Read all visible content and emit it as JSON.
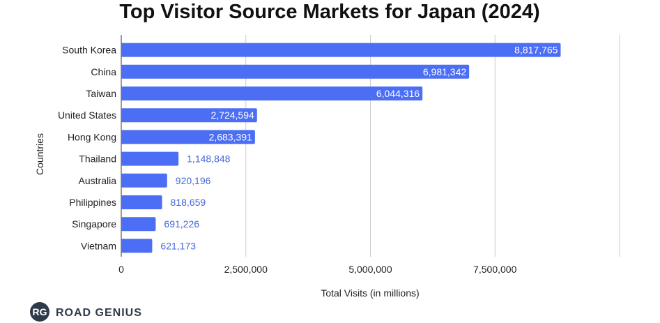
{
  "chart_data": {
    "type": "bar",
    "orientation": "horizontal",
    "title": "Top Visitor Source Markets for Japan (2024)",
    "xlabel": "Total Visits (in millions)",
    "ylabel": "Countries",
    "categories": [
      "South Korea",
      "China",
      "Taiwan",
      "United States",
      "Hong Kong",
      "Thailand",
      "Australia",
      "Philippines",
      "Singapore",
      "Vietnam"
    ],
    "values": [
      8817765,
      6981342,
      6044316,
      2724594,
      2683391,
      1148848,
      920196,
      818659,
      691226,
      621173
    ],
    "value_labels": [
      "8,817,765",
      "6,981,342",
      "6,044,316",
      "2,724,594",
      "2,683,391",
      "1,148,848",
      "920,196",
      "818,659",
      "691,226",
      "621,173"
    ],
    "xlim": [
      0,
      10000000
    ],
    "xticks": [
      0,
      2500000,
      5000000,
      7500000
    ],
    "xtick_labels": [
      "0",
      "2,500,000",
      "5,000,000",
      "7,500,000"
    ],
    "grid": "vertical",
    "bar_color": "#4c6ef5"
  },
  "branding": {
    "badge": "RG",
    "name": "ROAD GENIUS"
  }
}
